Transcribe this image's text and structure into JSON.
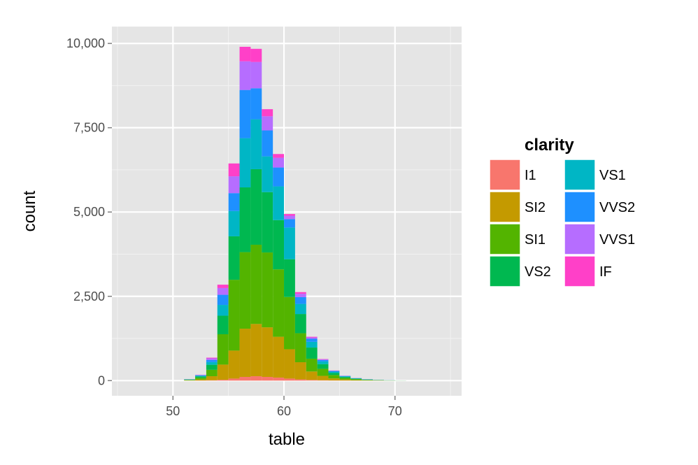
{
  "chart_data": {
    "type": "bar",
    "stacked": true,
    "title": "",
    "xlabel": "table",
    "ylabel": "count",
    "xlim": [
      44.5,
      76
    ],
    "ylim": [
      -450,
      10500
    ],
    "xticks": [
      50,
      60,
      70
    ],
    "xtick_labels": [
      "50",
      "60",
      "70"
    ],
    "yticks": [
      0,
      2500,
      5000,
      7500,
      10000
    ],
    "ytick_labels": [
      "0",
      "2,500",
      "5,000",
      "7,500",
      "10,000"
    ],
    "grid": true,
    "legend": {
      "title": "clarity",
      "placement": "right",
      "columns": 2
    },
    "bin_width": 1,
    "x": [
      51.5,
      52.5,
      53.5,
      54.5,
      55.5,
      56.5,
      57.5,
      58.5,
      59.5,
      60.5,
      61.5,
      62.5,
      63.5,
      64.5,
      65.5,
      66.5,
      67.5,
      68.5,
      69.5,
      70.5
    ],
    "series": [
      {
        "name": "I1",
        "color": "#F8766D",
        "values": [
          2,
          4,
          10,
          25,
          60,
          110,
          130,
          110,
          90,
          60,
          35,
          20,
          10,
          5,
          3,
          2,
          1,
          1,
          0,
          0
        ]
      },
      {
        "name": "SI2",
        "color": "#C49A00",
        "values": [
          8,
          30,
          120,
          450,
          830,
          1430,
          1550,
          1470,
          1210,
          870,
          510,
          250,
          130,
          60,
          30,
          15,
          8,
          5,
          2,
          1
        ]
      },
      {
        "name": "SI1",
        "color": "#53B400",
        "values": [
          12,
          50,
          190,
          900,
          2100,
          2270,
          2350,
          2220,
          2000,
          1550,
          860,
          380,
          210,
          100,
          45,
          25,
          12,
          6,
          3,
          1
        ]
      },
      {
        "name": "VS2",
        "color": "#00B850",
        "values": [
          10,
          40,
          150,
          550,
          1290,
          1920,
          2240,
          1790,
          1460,
          1120,
          570,
          330,
          140,
          60,
          30,
          15,
          10,
          5,
          3,
          1
        ]
      },
      {
        "name": "VS1",
        "color": "#00B6C5",
        "values": [
          6,
          20,
          80,
          320,
          750,
          1460,
          1480,
          1060,
          1000,
          940,
          300,
          170,
          80,
          40,
          20,
          10,
          6,
          3,
          2,
          1
        ]
      },
      {
        "name": "VVS2",
        "color": "#1E90FF",
        "values": [
          4,
          15,
          60,
          300,
          530,
          1430,
          920,
          770,
          560,
          250,
          200,
          90,
          40,
          20,
          10,
          5,
          3,
          2,
          1,
          0
        ]
      },
      {
        "name": "VVS1",
        "color": "#B66DFF",
        "values": [
          3,
          10,
          50,
          200,
          500,
          850,
          780,
          420,
          290,
          100,
          100,
          40,
          20,
          10,
          5,
          3,
          2,
          1,
          1,
          0
        ]
      },
      {
        "name": "IF",
        "color": "#FF40C8",
        "values": [
          1,
          5,
          20,
          100,
          380,
          430,
          390,
          210,
          110,
          50,
          50,
          20,
          10,
          5,
          2,
          1,
          1,
          0,
          0,
          0
        ]
      }
    ]
  },
  "colors": {
    "panel": "#E5E5E5",
    "grid_major": "#FFFFFF",
    "grid_minor": "#F2F2F2",
    "tick": "#7F7F7F"
  }
}
